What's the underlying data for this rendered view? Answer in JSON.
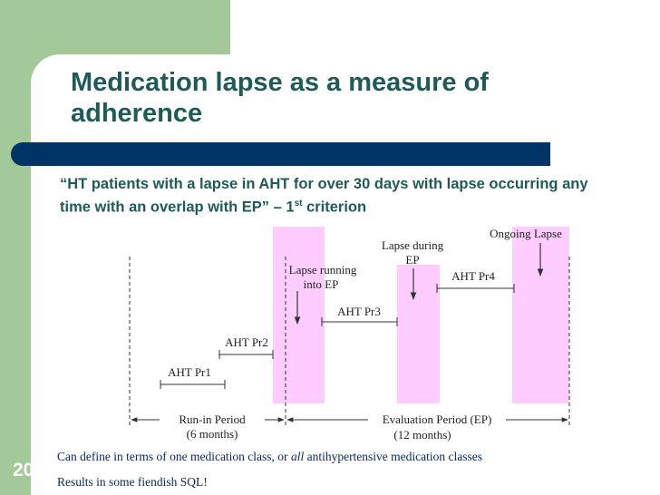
{
  "slide": {
    "title": "Medication lapse as a measure of adherence",
    "quote_main": "“HT patients with a lapse in AHT for over 30 days with lapse occurring any time with an overlap with EP” – 1",
    "quote_sup": "st",
    "quote_tail": " criterion",
    "slide_number": "20"
  },
  "diagram": {
    "labels": {
      "lapse_running": [
        "Lapse running",
        "into EP"
      ],
      "lapse_during": [
        "Lapse during",
        "EP"
      ],
      "ongoing_lapse": "Ongoing Lapse",
      "aht_pr1": "AHT Pr1",
      "aht_pr2": "AHT Pr2",
      "aht_pr3": "AHT Pr3",
      "aht_pr4": "AHT Pr4",
      "run_in": [
        "Run-in Period",
        "(6 months)"
      ],
      "evaluation": [
        "Evaluation Period (EP)",
        "(12 months)"
      ]
    },
    "colors": {
      "lapse_band": "#ffccff",
      "line": "#333333"
    }
  },
  "notes": {
    "note1_a": "Can define in terms of one medication class, or ",
    "note1_italic": "all",
    "note1_b": " antihypertensive medication classes",
    "note2": "Results in some fiendish SQL!"
  }
}
